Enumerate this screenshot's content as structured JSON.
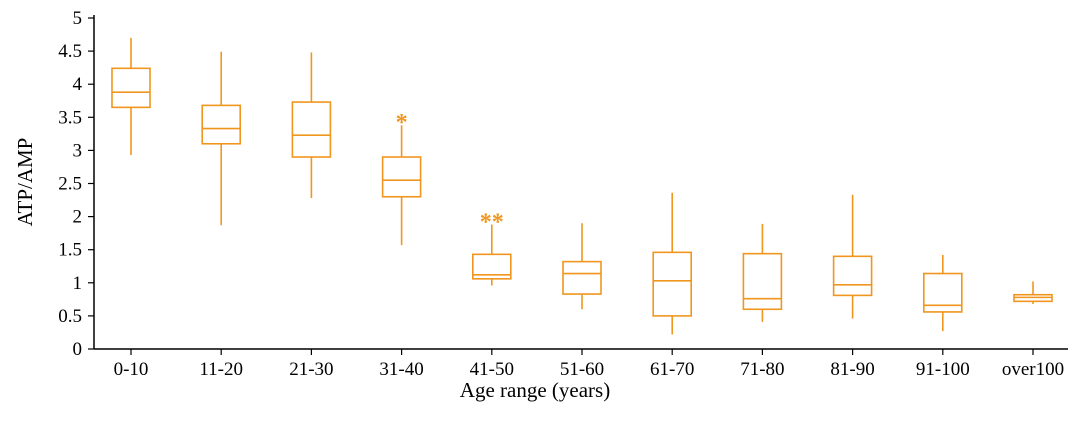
{
  "chart_data": {
    "type": "box",
    "title": "",
    "xlabel": "Age range (years)",
    "ylabel": "ATP/AMP",
    "ylim": [
      0,
      5
    ],
    "yticks": [
      "0",
      "0.5",
      "1",
      "1.5",
      "2",
      "2.5",
      "3",
      "3.5",
      "4",
      "4.5",
      "5"
    ],
    "ytick_values": [
      0,
      0.5,
      1,
      1.5,
      2,
      2.5,
      3,
      3.5,
      4,
      4.5,
      5
    ],
    "categories": [
      "0-10",
      "11-20",
      "21-30",
      "31-40",
      "41-50",
      "51-60",
      "61-70",
      "71-80",
      "81-90",
      "91-100",
      "over100"
    ],
    "boxes": [
      {
        "min": 2.93,
        "q1": 3.65,
        "median": 3.88,
        "q3": 4.24,
        "max": 4.7
      },
      {
        "min": 1.87,
        "q1": 3.1,
        "median": 3.33,
        "q3": 3.68,
        "max": 4.49
      },
      {
        "min": 2.28,
        "q1": 2.9,
        "median": 3.23,
        "q3": 3.73,
        "max": 4.48
      },
      {
        "min": 1.57,
        "q1": 2.3,
        "median": 2.55,
        "q3": 2.9,
        "max": 3.38
      },
      {
        "min": 0.96,
        "q1": 1.06,
        "median": 1.12,
        "q3": 1.43,
        "max": 1.88
      },
      {
        "min": 0.6,
        "q1": 0.83,
        "median": 1.14,
        "q3": 1.32,
        "max": 1.9
      },
      {
        "min": 0.22,
        "q1": 0.5,
        "median": 1.03,
        "q3": 1.46,
        "max": 2.36
      },
      {
        "min": 0.41,
        "q1": 0.6,
        "median": 0.76,
        "q3": 1.44,
        "max": 1.89
      },
      {
        "min": 0.46,
        "q1": 0.81,
        "median": 0.97,
        "q3": 1.4,
        "max": 2.33
      },
      {
        "min": 0.27,
        "q1": 0.56,
        "median": 0.66,
        "q3": 1.14,
        "max": 1.42
      },
      {
        "min": 0.68,
        "q1": 0.72,
        "median": 0.78,
        "q3": 0.82,
        "max": 1.02
      }
    ],
    "annotations": [
      {
        "category": "31-40",
        "text": "*",
        "y": 3.52
      },
      {
        "category": "41-50",
        "text": "**",
        "y": 2.02
      }
    ],
    "grid": false,
    "colors": {
      "box": "#f0961e",
      "annotation": "#f0961e",
      "axis": "#000000"
    }
  }
}
